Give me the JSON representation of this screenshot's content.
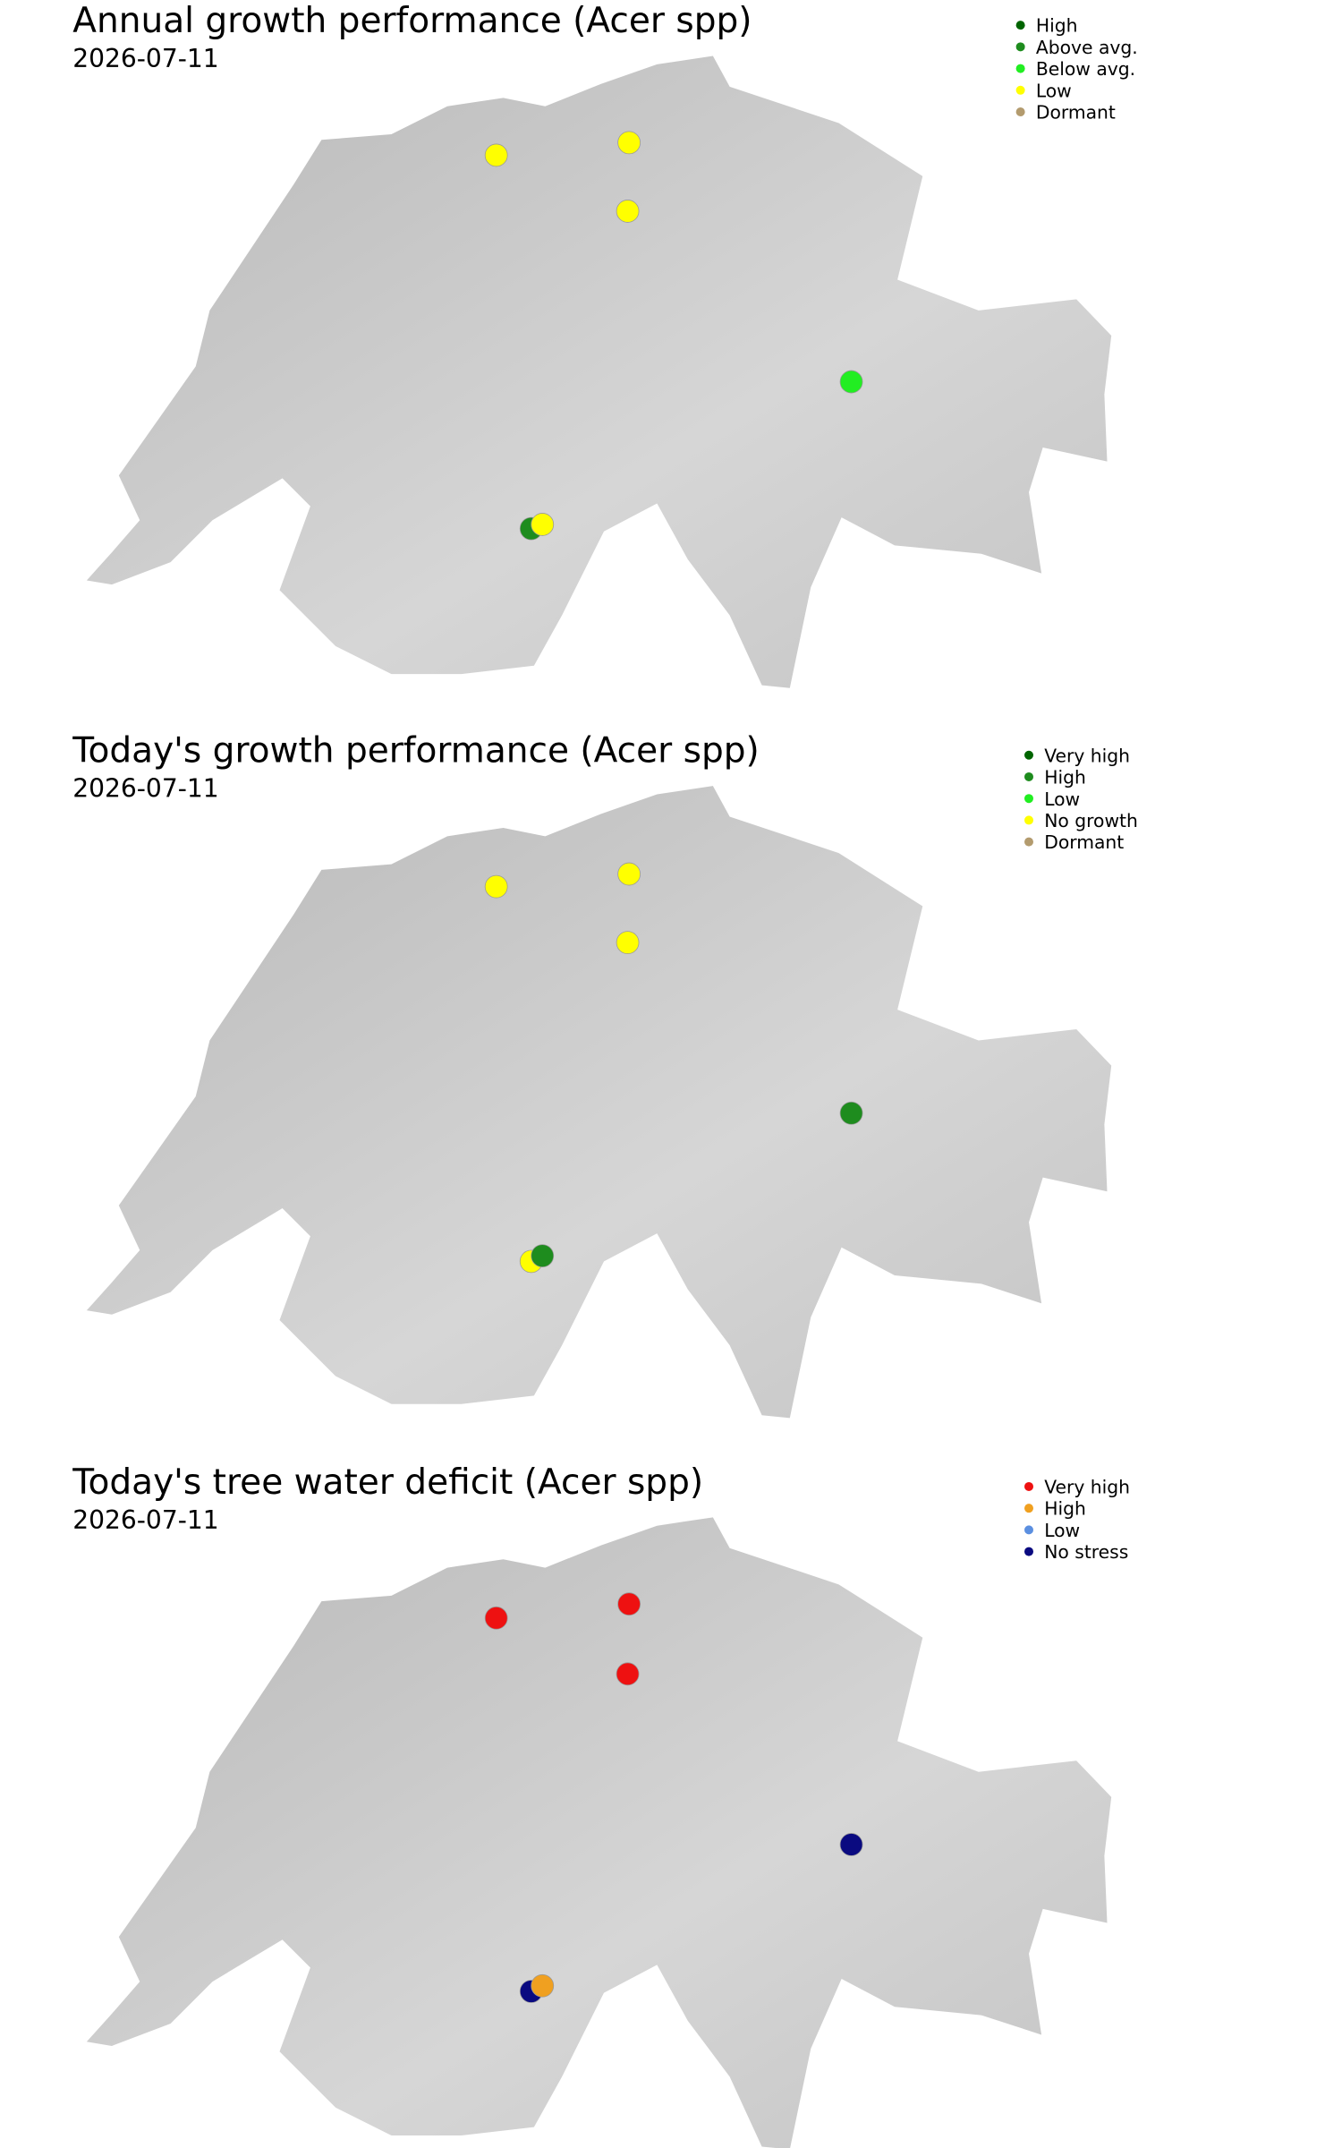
{
  "panels": [
    {
      "title": "Annual growth performance (Acer spp)",
      "date": "2026-07-11",
      "legend": [
        {
          "label": "High",
          "color": "#006400"
        },
        {
          "label": "Above avg.",
          "color": "#1e8c1e"
        },
        {
          "label": "Below avg.",
          "color": "#22ee22"
        },
        {
          "label": "Low",
          "color": "#ffff00"
        },
        {
          "label": "Dormant",
          "color": "#b39b6e"
        }
      ]
    },
    {
      "title": "Today's growth performance (Acer spp)",
      "date": "2026-07-11",
      "legend": [
        {
          "label": "Very high",
          "color": "#006400"
        },
        {
          "label": "High",
          "color": "#1e8c1e"
        },
        {
          "label": "Low",
          "color": "#22ee22"
        },
        {
          "label": "No growth",
          "color": "#ffff00"
        },
        {
          "label": "Dormant",
          "color": "#b39b6e"
        }
      ]
    },
    {
      "title": "Today's tree water deficit (Acer spp)",
      "date": "2026-07-11",
      "legend": [
        {
          "label": "Very high",
          "color": "#ee1111"
        },
        {
          "label": "High",
          "color": "#f0a020"
        },
        {
          "label": "Low",
          "color": "#5b8fe0"
        },
        {
          "label": "No stress",
          "color": "#0a0a80"
        }
      ]
    }
  ]
}
